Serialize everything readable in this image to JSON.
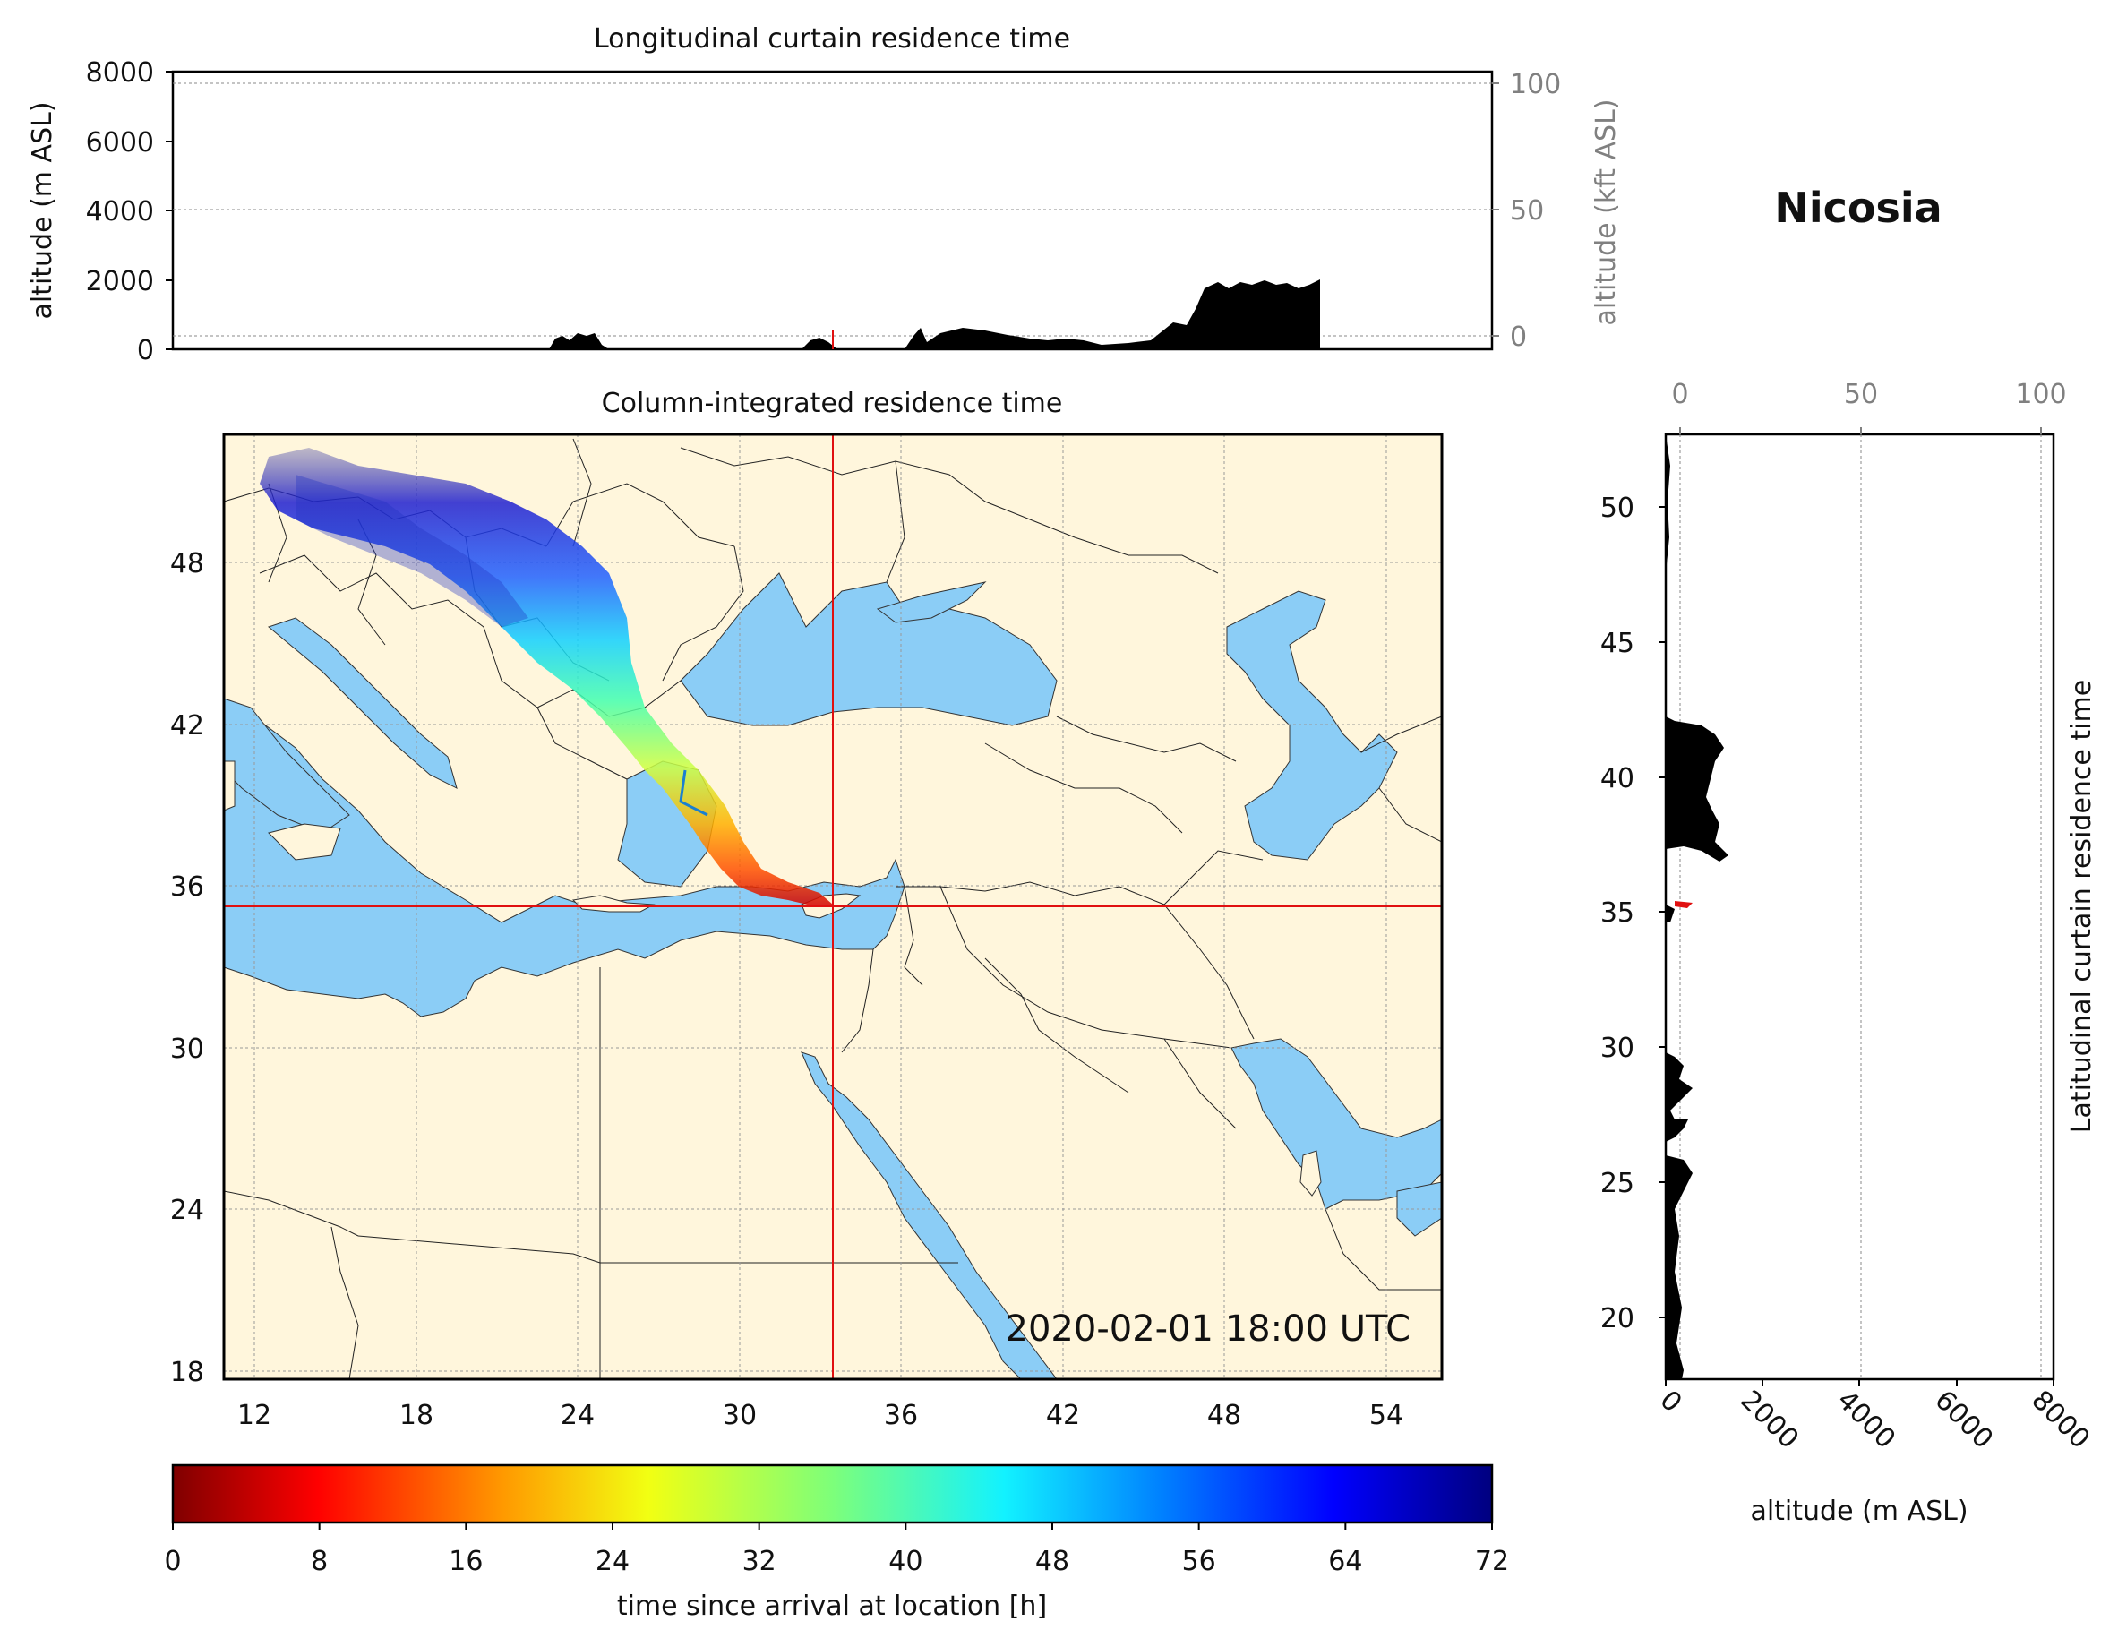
{
  "location": "Nicosia",
  "timestamp": "2020-02-01 18:00 UTC",
  "colors": {
    "land": "#fff6dc",
    "sea": "#8bcdf6",
    "marker": "#e01010",
    "profile": "#000000",
    "right_axis": "#808080"
  },
  "longitudinal_panel": {
    "title": "Longitudinal curtain residence time",
    "ylabel_left": "altitude (m ASL)",
    "ylabel_right": "altitude (kft ASL)",
    "yticks_left": [
      "0",
      "2000",
      "4000",
      "6000",
      "8000"
    ],
    "yticks_right": [
      "0",
      "50",
      "100"
    ]
  },
  "map_panel": {
    "title": "Column-integrated residence time",
    "xticks": [
      "12",
      "18",
      "24",
      "30",
      "36",
      "42",
      "48",
      "54"
    ],
    "yticks": [
      "18",
      "24",
      "30",
      "36",
      "42",
      "48"
    ],
    "marker": {
      "lon": 33.4,
      "lat": 35.2
    }
  },
  "latitudinal_panel": {
    "ylabel": "Latitudinal curtain residence time",
    "xlabel": "altitude (m ASL)",
    "xticks_bottom": [
      "0",
      "2000",
      "4000",
      "6000",
      "8000"
    ],
    "xticks_top": [
      "0",
      "50",
      "100"
    ],
    "yticks": [
      "20",
      "25",
      "30",
      "35",
      "40",
      "45",
      "50"
    ]
  },
  "colorbar": {
    "label": "time since arrival at location [h]",
    "ticks": [
      "0",
      "8",
      "16",
      "24",
      "32",
      "40",
      "48",
      "56",
      "64",
      "72"
    ],
    "range": [
      0,
      72
    ],
    "colormap": "jet_r"
  }
}
